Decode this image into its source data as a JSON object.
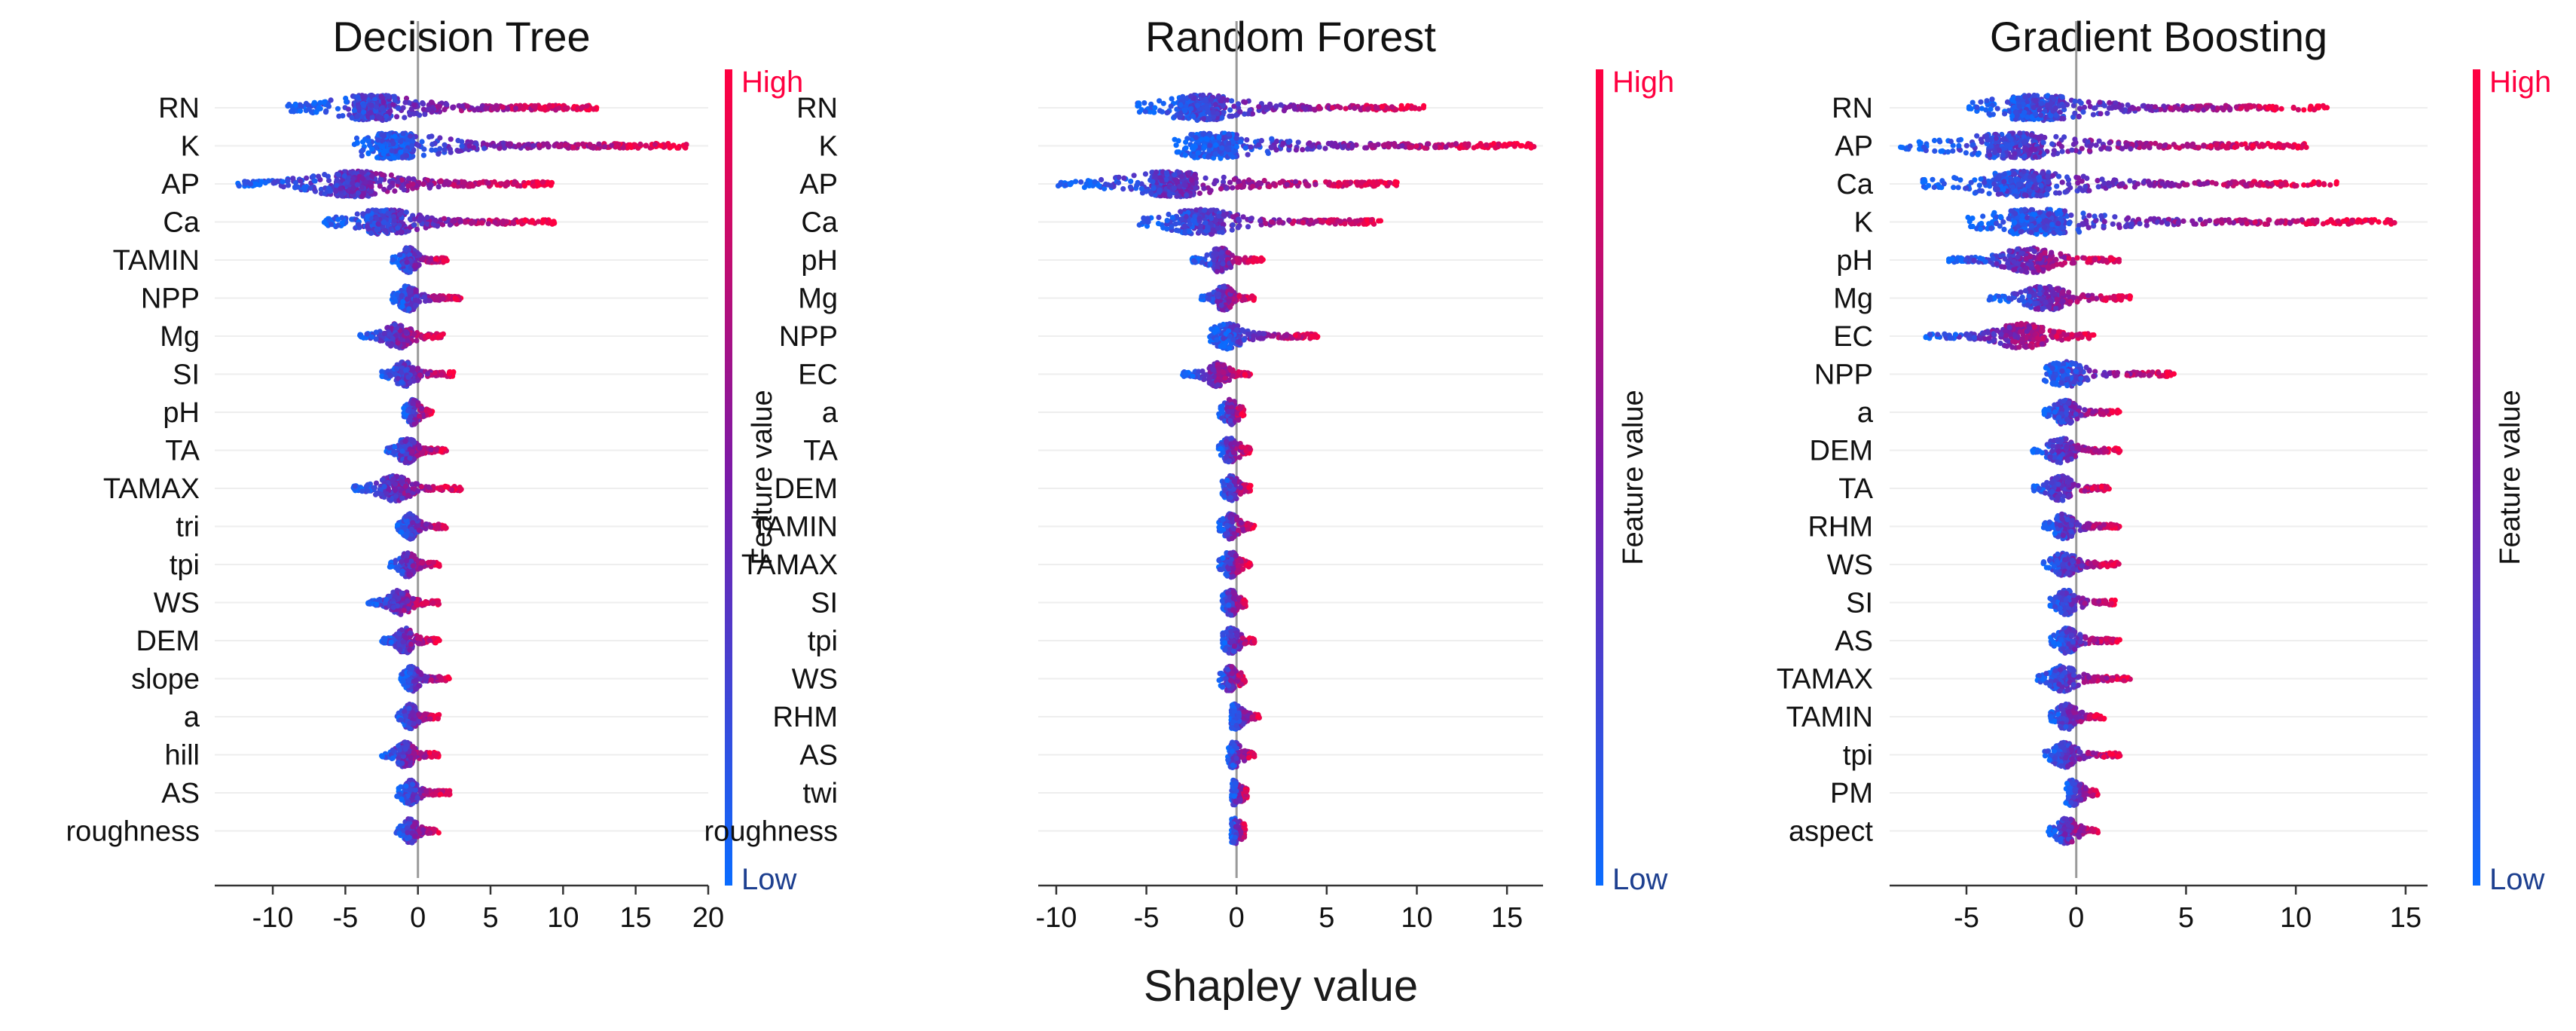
{
  "figure": {
    "shared_xlabel": "Shapley value",
    "colorbar": {
      "high_label": "High",
      "low_label": "Low",
      "label": "Feature value",
      "high_color": "#ff0040",
      "low_color": "#0a6cff"
    }
  },
  "chart_data": [
    {
      "type": "scatter",
      "subtype": "shap-beeswarm",
      "title": "Decision Tree",
      "xlabel": "Shapley value",
      "ylabel": "",
      "xlim": [
        -14,
        20
      ],
      "xticks": [
        -10,
        -5,
        0,
        5,
        10,
        15,
        20
      ],
      "features": [
        "RN",
        "K",
        "AP",
        "Ca",
        "TAMIN",
        "NPP",
        "Mg",
        "SI",
        "pH",
        "TA",
        "TAMAX",
        "tri",
        "tpi",
        "WS",
        "DEM",
        "slope",
        "a",
        "hill",
        "AS",
        "roughness"
      ],
      "ranges": [
        [
          -9,
          12.5
        ],
        [
          -4.5,
          18.5
        ],
        [
          -12.5,
          9.5
        ],
        [
          -6.5,
          9.5
        ],
        [
          -1.8,
          2
        ],
        [
          -1.8,
          3
        ],
        [
          -4,
          2
        ],
        [
          -2.5,
          2.5
        ],
        [
          -1,
          1
        ],
        [
          -2.2,
          2
        ],
        [
          -4.5,
          3
        ],
        [
          -1.5,
          2
        ],
        [
          -2,
          1.5
        ],
        [
          -3.5,
          1.5
        ],
        [
          -2.5,
          1.5
        ],
        [
          -1.2,
          2.2
        ],
        [
          -1.5,
          1.5
        ],
        [
          -2.5,
          1.5
        ],
        [
          -1.5,
          2.2
        ],
        [
          -1.5,
          1.5
        ]
      ]
    },
    {
      "type": "scatter",
      "subtype": "shap-beeswarm",
      "title": "Random Forest",
      "xlabel": "Shapley value",
      "ylabel": "",
      "xlim": [
        -11,
        17
      ],
      "xticks": [
        -10,
        -5,
        0,
        5,
        10,
        15
      ],
      "features": [
        "RN",
        "K",
        "AP",
        "Ca",
        "pH",
        "Mg",
        "NPP",
        "EC",
        "a",
        "TA",
        "DEM",
        "TAMIN",
        "TAMAX",
        "SI",
        "tpi",
        "WS",
        "RHM",
        "AS",
        "twi",
        "roughness"
      ],
      "ranges": [
        [
          -5.5,
          10.5
        ],
        [
          -3.5,
          16.5
        ],
        [
          -10,
          9
        ],
        [
          -5.5,
          8
        ],
        [
          -2.5,
          1.5
        ],
        [
          -2,
          1
        ],
        [
          -1.5,
          4.5
        ],
        [
          -3,
          0.8
        ],
        [
          -1,
          0.5
        ],
        [
          -1,
          0.8
        ],
        [
          -0.8,
          0.8
        ],
        [
          -1,
          1
        ],
        [
          -1,
          0.8
        ],
        [
          -0.8,
          0.6
        ],
        [
          -0.8,
          1
        ],
        [
          -1,
          0.5
        ],
        [
          -0.3,
          1.3
        ],
        [
          -0.5,
          1
        ],
        [
          -0.3,
          0.6
        ],
        [
          -0.3,
          0.5
        ]
      ]
    },
    {
      "type": "scatter",
      "subtype": "shap-beeswarm",
      "title": "Gradient Boosting",
      "xlabel": "Shapley value",
      "ylabel": "",
      "xlim": [
        -8.5,
        16
      ],
      "xticks": [
        -5,
        0,
        5,
        10,
        15
      ],
      "features": [
        "RN",
        "AP",
        "Ca",
        "K",
        "pH",
        "Mg",
        "EC",
        "NPP",
        "a",
        "DEM",
        "TA",
        "RHM",
        "WS",
        "SI",
        "AS",
        "TAMAX",
        "TAMIN",
        "tpi",
        "PM",
        "aspect"
      ],
      "ranges": [
        [
          -5,
          11.5
        ],
        [
          -8,
          10.5
        ],
        [
          -7,
          12
        ],
        [
          -5,
          14.5
        ],
        [
          -6,
          2
        ],
        [
          -4,
          2.5
        ],
        [
          -7,
          0.8
        ],
        [
          -1.5,
          4.5
        ],
        [
          -1.5,
          2
        ],
        [
          -2,
          2
        ],
        [
          -2,
          1.5
        ],
        [
          -1.5,
          2
        ],
        [
          -1.5,
          2
        ],
        [
          -1.2,
          1.8
        ],
        [
          -1.2,
          2
        ],
        [
          -1.8,
          2.5
        ],
        [
          -1.2,
          1.3
        ],
        [
          -1.5,
          2
        ],
        [
          -0.5,
          1
        ],
        [
          -1.3,
          1
        ]
      ]
    }
  ]
}
